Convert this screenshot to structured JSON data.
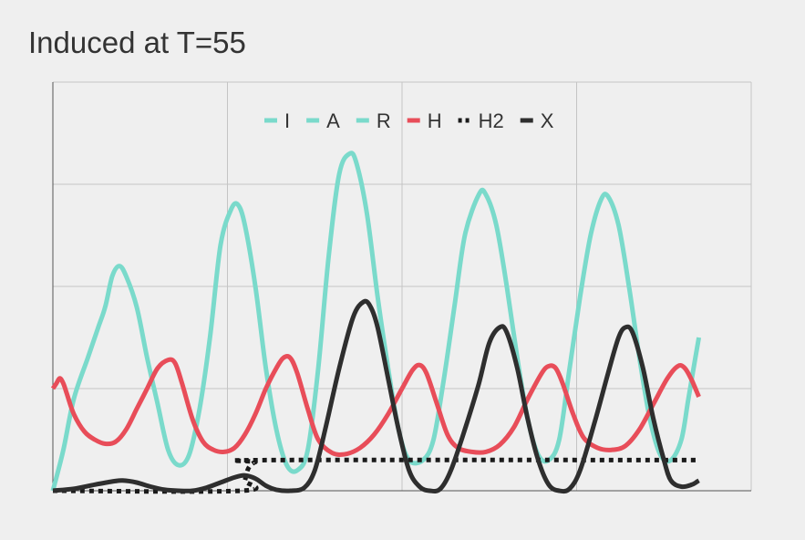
{
  "chart_data": {
    "type": "line",
    "title": "Induced at T=55",
    "xlabel": "",
    "ylabel": "",
    "xlim": [
      0,
      100
    ],
    "ylim": [
      0,
      4
    ],
    "grid": true,
    "legend_position": "top-center",
    "series": [
      {
        "name": "I",
        "color": "#7adacb",
        "width": 5,
        "dash": "",
        "points": [
          [
            0,
            0.0
          ],
          [
            1.5,
            0.4
          ],
          [
            3,
            0.9
          ],
          [
            5,
            1.3
          ],
          [
            6.5,
            1.6
          ],
          [
            7.5,
            1.8
          ],
          [
            8.5,
            2.1
          ],
          [
            9.5,
            2.2
          ],
          [
            10.5,
            2.1
          ],
          [
            12,
            1.8
          ],
          [
            13.5,
            1.3
          ],
          [
            15,
            0.85
          ],
          [
            16.5,
            0.4
          ],
          [
            18,
            0.25
          ],
          [
            19.5,
            0.35
          ],
          [
            21,
            0.8
          ],
          [
            22.5,
            1.5
          ],
          [
            24,
            2.4
          ],
          [
            25.5,
            2.75
          ],
          [
            26.5,
            2.8
          ],
          [
            27.5,
            2.6
          ],
          [
            29,
            2.0
          ],
          [
            30.5,
            1.2
          ],
          [
            32,
            0.6
          ],
          [
            33.5,
            0.25
          ],
          [
            35,
            0.2
          ],
          [
            36.5,
            0.4
          ],
          [
            38,
            1.2
          ],
          [
            39.5,
            2.3
          ],
          [
            41,
            3.1
          ],
          [
            42.5,
            3.3
          ],
          [
            43.5,
            3.2
          ],
          [
            45,
            2.7
          ],
          [
            46.5,
            1.9
          ],
          [
            48,
            1.2
          ],
          [
            49.5,
            0.6
          ],
          [
            51,
            0.3
          ],
          [
            53,
            0.3
          ],
          [
            54.5,
            0.5
          ],
          [
            56,
            1.1
          ],
          [
            57.5,
            1.8
          ],
          [
            59,
            2.5
          ],
          [
            61,
            2.9
          ],
          [
            62,
            2.9
          ],
          [
            63.5,
            2.6
          ],
          [
            65,
            2.0
          ],
          [
            66.5,
            1.3
          ],
          [
            68,
            0.7
          ],
          [
            69.5,
            0.35
          ],
          [
            71,
            0.3
          ],
          [
            72.5,
            0.5
          ],
          [
            74,
            1.2
          ],
          [
            75.5,
            1.9
          ],
          [
            77,
            2.5
          ],
          [
            78.5,
            2.85
          ],
          [
            79.5,
            2.88
          ],
          [
            81,
            2.6
          ],
          [
            82.5,
            2.0
          ],
          [
            84,
            1.3
          ],
          [
            85.5,
            0.7
          ],
          [
            87,
            0.35
          ],
          [
            88.5,
            0.3
          ],
          [
            90,
            0.5
          ],
          [
            91,
            0.9
          ],
          [
            92,
            1.3
          ],
          [
            92.5,
            1.5
          ]
        ]
      },
      {
        "name": "A",
        "color": "#7adacb",
        "width": 5,
        "dash": "",
        "points": []
      },
      {
        "name": "R",
        "color": "#7adacb",
        "width": 5,
        "dash": "",
        "points": []
      },
      {
        "name": "H",
        "color": "#e84d59",
        "width": 5,
        "dash": "",
        "points": [
          [
            0,
            1.0
          ],
          [
            0.5,
            1.05
          ],
          [
            1,
            1.1
          ],
          [
            1.5,
            1.05
          ],
          [
            2,
            0.95
          ],
          [
            3,
            0.75
          ],
          [
            4.5,
            0.58
          ],
          [
            6,
            0.5
          ],
          [
            7.5,
            0.46
          ],
          [
            9,
            0.48
          ],
          [
            10.5,
            0.6
          ],
          [
            12,
            0.8
          ],
          [
            13.5,
            1.0
          ],
          [
            15,
            1.2
          ],
          [
            16.5,
            1.28
          ],
          [
            17.5,
            1.25
          ],
          [
            18.5,
            1.05
          ],
          [
            20,
            0.7
          ],
          [
            21.5,
            0.48
          ],
          [
            23,
            0.4
          ],
          [
            24.5,
            0.38
          ],
          [
            26,
            0.42
          ],
          [
            27.5,
            0.55
          ],
          [
            29,
            0.75
          ],
          [
            30.5,
            1.0
          ],
          [
            32,
            1.2
          ],
          [
            33,
            1.3
          ],
          [
            34,
            1.3
          ],
          [
            35,
            1.15
          ],
          [
            36.5,
            0.8
          ],
          [
            38,
            0.5
          ],
          [
            40,
            0.37
          ],
          [
            42,
            0.36
          ],
          [
            44,
            0.42
          ],
          [
            46,
            0.55
          ],
          [
            48,
            0.75
          ],
          [
            50,
            1.0
          ],
          [
            51.5,
            1.18
          ],
          [
            52.5,
            1.23
          ],
          [
            53.5,
            1.15
          ],
          [
            55,
            0.85
          ],
          [
            56.5,
            0.55
          ],
          [
            58,
            0.42
          ],
          [
            60,
            0.38
          ],
          [
            62,
            0.38
          ],
          [
            64,
            0.45
          ],
          [
            66,
            0.62
          ],
          [
            68,
            0.9
          ],
          [
            70,
            1.15
          ],
          [
            71,
            1.22
          ],
          [
            72,
            1.2
          ],
          [
            73,
            1.05
          ],
          [
            74.5,
            0.75
          ],
          [
            76,
            0.52
          ],
          [
            78,
            0.42
          ],
          [
            80,
            0.4
          ],
          [
            82,
            0.44
          ],
          [
            84,
            0.6
          ],
          [
            86,
            0.85
          ],
          [
            88,
            1.1
          ],
          [
            89.5,
            1.22
          ],
          [
            90.5,
            1.2
          ],
          [
            91.5,
            1.08
          ],
          [
            92.5,
            0.92
          ]
        ]
      },
      {
        "name": "H2",
        "color": "#1a1a1a",
        "width": 5,
        "dash": "5 5",
        "points": [
          [
            0,
            0.0
          ],
          [
            27,
            0.0
          ],
          [
            27.5,
            0.1
          ],
          [
            28,
            0.22
          ],
          [
            29,
            0.28
          ],
          [
            31,
            0.3
          ],
          [
            92.5,
            0.3
          ]
        ]
      },
      {
        "name": "X",
        "color": "#2e2e2e",
        "width": 5,
        "dash": "",
        "points": [
          [
            0,
            0.0
          ],
          [
            3,
            0.02
          ],
          [
            6,
            0.06
          ],
          [
            8.5,
            0.09
          ],
          [
            10,
            0.1
          ],
          [
            12,
            0.08
          ],
          [
            14,
            0.04
          ],
          [
            16,
            0.01
          ],
          [
            18,
            0.0
          ],
          [
            20,
            0.0
          ],
          [
            22,
            0.03
          ],
          [
            24,
            0.08
          ],
          [
            26,
            0.13
          ],
          [
            27.5,
            0.15
          ],
          [
            29,
            0.12
          ],
          [
            30.5,
            0.05
          ],
          [
            32,
            0.01
          ],
          [
            34,
            0.0
          ],
          [
            36,
            0.03
          ],
          [
            37.5,
            0.2
          ],
          [
            39,
            0.6
          ],
          [
            41,
            1.2
          ],
          [
            43,
            1.7
          ],
          [
            44.5,
            1.85
          ],
          [
            45.5,
            1.8
          ],
          [
            46.5,
            1.6
          ],
          [
            48,
            1.1
          ],
          [
            49.5,
            0.6
          ],
          [
            51,
            0.2
          ],
          [
            52.5,
            0.04
          ],
          [
            54,
            0.0
          ],
          [
            55.5,
            0.02
          ],
          [
            57,
            0.2
          ],
          [
            59,
            0.6
          ],
          [
            61,
            1.05
          ],
          [
            62.5,
            1.45
          ],
          [
            64,
            1.6
          ],
          [
            65,
            1.55
          ],
          [
            66.5,
            1.2
          ],
          [
            68,
            0.7
          ],
          [
            69.5,
            0.3
          ],
          [
            71,
            0.06
          ],
          [
            72.5,
            0.0
          ],
          [
            74,
            0.02
          ],
          [
            75.5,
            0.2
          ],
          [
            77.5,
            0.65
          ],
          [
            79.5,
            1.15
          ],
          [
            81,
            1.5
          ],
          [
            82,
            1.6
          ],
          [
            83,
            1.55
          ],
          [
            84.5,
            1.2
          ],
          [
            86,
            0.7
          ],
          [
            87.5,
            0.3
          ],
          [
            88.5,
            0.1
          ],
          [
            90,
            0.04
          ],
          [
            91.5,
            0.06
          ],
          [
            92.5,
            0.1
          ]
        ]
      }
    ]
  }
}
